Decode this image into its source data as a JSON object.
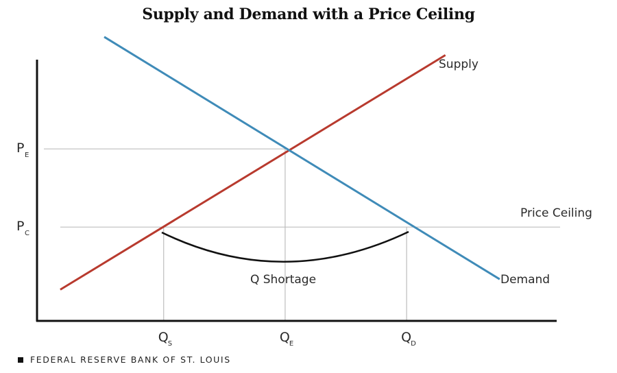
{
  "chart_data": {
    "type": "line",
    "title": "Supply and Demand with a Price Ceiling",
    "xlabel": "",
    "ylabel": "",
    "grid": false,
    "xlim": [
      0,
      10
    ],
    "ylim": [
      0,
      10
    ],
    "series": [
      {
        "name": "Supply",
        "color": "#b83a2e",
        "points": [
          [
            0.9,
            1.2
          ],
          [
            15.8,
            10.2
          ]
        ]
      },
      {
        "name": "Demand",
        "color": "#3f8bb8",
        "points": [
          [
            2.6,
            10.9
          ],
          [
            17.9,
            1.6
          ]
        ]
      }
    ],
    "equilibrium": {
      "q": 9.6,
      "p": 6.6
    },
    "price_ceiling": {
      "label": "Price Ceiling",
      "p": 3.6
    },
    "x_ticks": [
      {
        "main": "Q",
        "sub": "S",
        "value": 4.9
      },
      {
        "main": "Q",
        "sub": "E",
        "value": 9.6
      },
      {
        "main": "Q",
        "sub": "D",
        "value": 14.3
      }
    ],
    "y_ticks": [
      {
        "main": "P",
        "sub": "E",
        "value": 6.6
      },
      {
        "main": "P",
        "sub": "C",
        "value": 3.6
      }
    ],
    "annotations": {
      "supply_label": "Supply",
      "demand_label": "Demand",
      "ceiling_label": "Price Ceiling",
      "shortage_label": "Q Shortage"
    }
  },
  "footer": {
    "source": "FEDERAL RESERVE BANK OF ST. LOUIS"
  }
}
